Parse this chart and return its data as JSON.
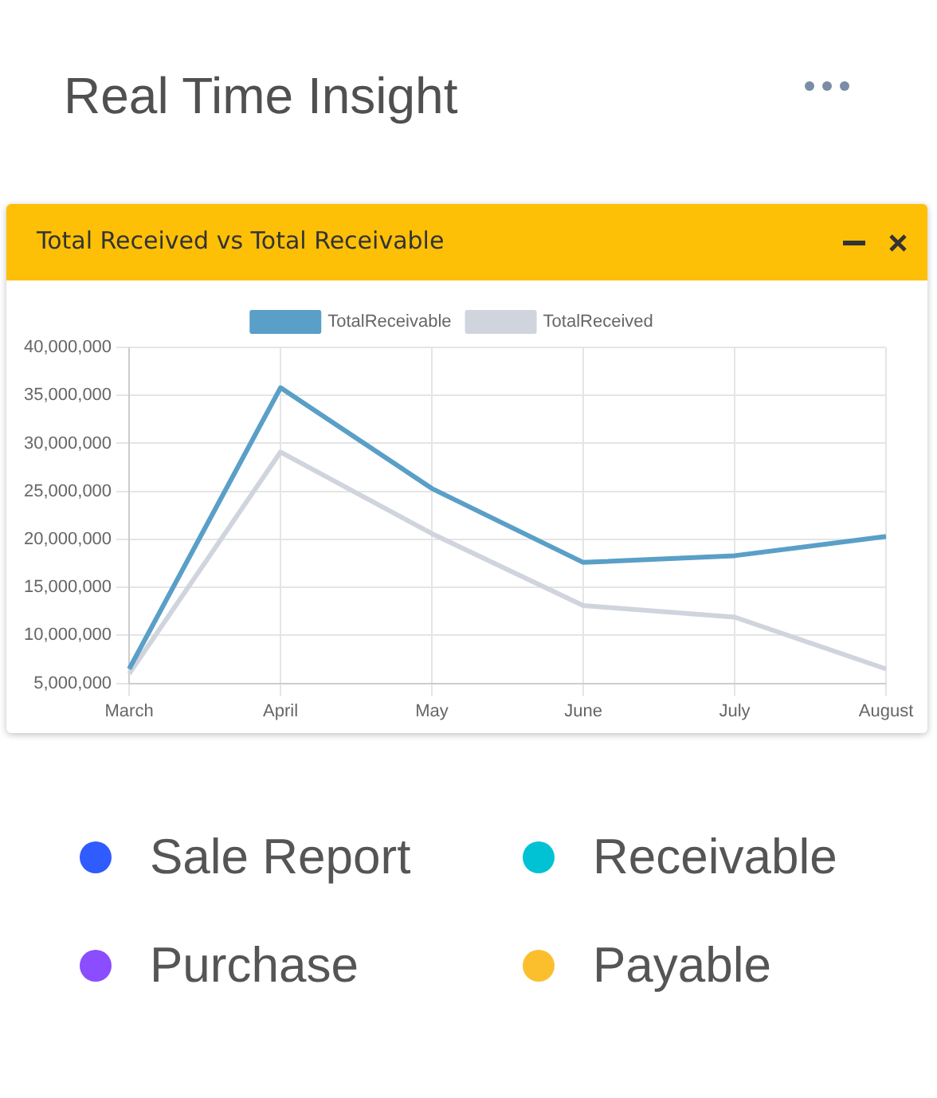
{
  "chart_data": {
    "type": "line",
    "title": "Real Time Insight",
    "subtitle": "Total Received vs Total Receivable",
    "categories": [
      "March",
      "April",
      "May",
      "June",
      "July",
      "August"
    ],
    "series": [
      {
        "name": "TotalReceivable",
        "color": "#5a9fc7",
        "values": [
          6500000,
          35800000,
          25300000,
          17600000,
          18300000,
          20300000
        ]
      },
      {
        "name": "TotalReceived",
        "color": "#d0d4dd",
        "values": [
          6000000,
          29100000,
          20600000,
          13100000,
          11900000,
          6500000
        ]
      }
    ],
    "ylim": [
      5000000,
      40000000
    ],
    "yticks": [
      {
        "value": 5000000,
        "label": "5,000,000"
      },
      {
        "value": 10000000,
        "label": "10,000,000"
      },
      {
        "value": 15000000,
        "label": "15,000,000"
      },
      {
        "value": 20000000,
        "label": "20,000,000"
      },
      {
        "value": 25000000,
        "label": "25,000,000"
      },
      {
        "value": 30000000,
        "label": "30,000,000"
      },
      {
        "value": 35000000,
        "label": "35,000,000"
      },
      {
        "value": 40000000,
        "label": "40,000,000"
      }
    ],
    "grid": true,
    "legend": "top",
    "marker": "none",
    "line_style": "solid",
    "annotations": [
      "Sale Report",
      "Receivable",
      "Purchase",
      "Payable"
    ]
  }
}
